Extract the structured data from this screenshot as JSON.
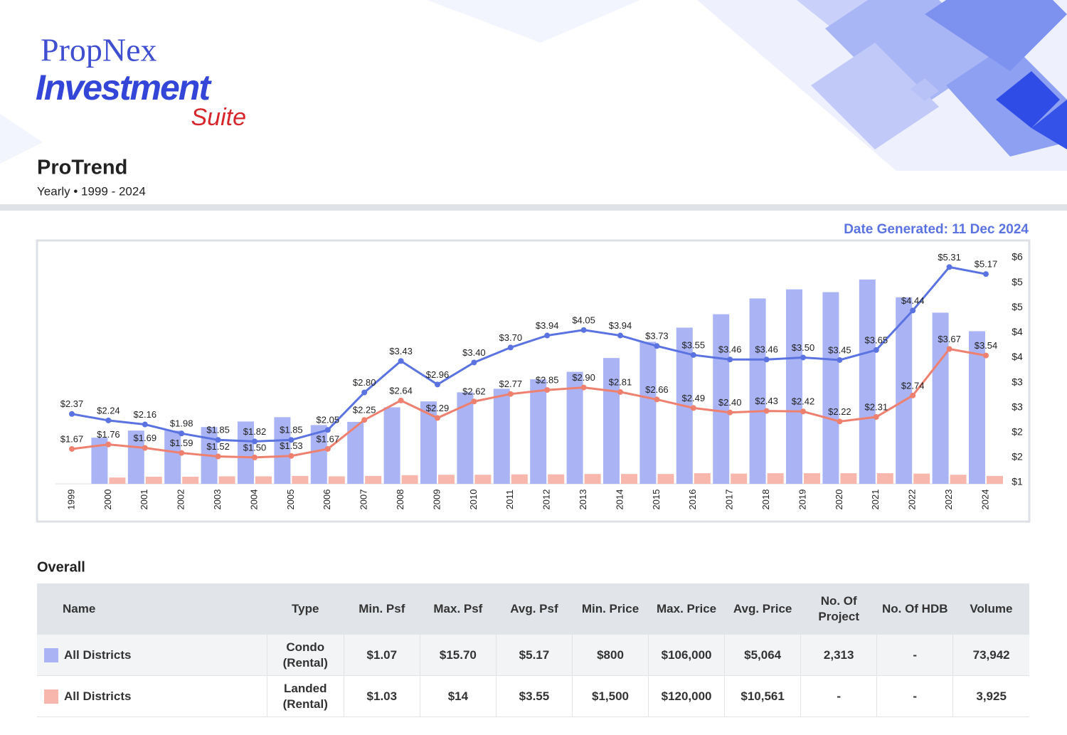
{
  "header": {
    "brand": "PropNex",
    "product": "Investment",
    "suffix": "Suite",
    "title": "ProTrend",
    "subtitle": "Yearly • 1999 - 2024",
    "date_generated": "Date Generated: 11 Dec 2024"
  },
  "chart_data": {
    "type": "combo",
    "categories": [
      "1999",
      "2000",
      "2001",
      "2002",
      "2003",
      "2004",
      "2005",
      "2006",
      "2007",
      "2008",
      "2009",
      "2010",
      "2011",
      "2012",
      "2013",
      "2014",
      "2015",
      "2016",
      "2017",
      "2018",
      "2019",
      "2020",
      "2021",
      "2022",
      "2023",
      "2024"
    ],
    "ylim": [
      1,
      5.5
    ],
    "yticks": [
      {
        "value": 1,
        "label": "$1"
      },
      {
        "value": 1.5,
        "label": "$2"
      },
      {
        "value": 2,
        "label": "$2"
      },
      {
        "value": 2.5,
        "label": "$3"
      },
      {
        "value": 3,
        "label": "$3"
      },
      {
        "value": 3.5,
        "label": "$4"
      },
      {
        "value": 4,
        "label": "$4"
      },
      {
        "value": 4.5,
        "label": "$5"
      },
      {
        "value": 5,
        "label": "$5"
      },
      {
        "value": 5.5,
        "label": "$6"
      }
    ],
    "y2lim": [
      0,
      5700
    ],
    "series": [
      {
        "type": "bar",
        "axis": "y2",
        "color": "#aab4f5",
        "values": [
          null,
          1170,
          1350,
          1350,
          1440,
          1580,
          1690,
          1490,
          1570,
          1940,
          2090,
          2320,
          2410,
          2650,
          2840,
          3190,
          3600,
          3960,
          4300,
          4700,
          4930,
          4860,
          5180,
          4730,
          4340,
          3870
        ]
      },
      {
        "type": "bar",
        "axis": "y2",
        "color": "#f8b7ac",
        "values": [
          null,
          160,
          180,
          180,
          190,
          190,
          200,
          190,
          200,
          220,
          230,
          230,
          240,
          240,
          250,
          250,
          250,
          270,
          260,
          270,
          270,
          270,
          270,
          260,
          230,
          200
        ]
      },
      {
        "type": "line",
        "color": "#5b73e0",
        "values": [
          2.37,
          2.24,
          2.16,
          1.98,
          1.85,
          1.82,
          1.85,
          2.05,
          2.8,
          3.43,
          2.96,
          3.4,
          3.7,
          3.94,
          4.05,
          3.94,
          3.73,
          3.55,
          3.46,
          3.46,
          3.5,
          3.45,
          3.65,
          4.44,
          5.31,
          5.17
        ],
        "value_labels": [
          "$2.37",
          "$2.24",
          "$2.16",
          "$1.98",
          "$1.85",
          "$1.82",
          "$1.85",
          "$2.05",
          "$2.80",
          "$3.43",
          "$2.96",
          "$3.40",
          "$3.70",
          "$3.94",
          "$4.05",
          "$3.94",
          "$3.73",
          "$3.55",
          "$3.46",
          "$3.46",
          "$3.50",
          "$3.45",
          "$3.65",
          "$4.44",
          "$5.31",
          "$5.17"
        ]
      },
      {
        "type": "line",
        "color": "#ee8070",
        "values": [
          1.67,
          1.76,
          1.69,
          1.59,
          1.52,
          1.5,
          1.53,
          1.67,
          2.25,
          2.64,
          2.29,
          2.62,
          2.77,
          2.85,
          2.9,
          2.81,
          2.66,
          2.49,
          2.4,
          2.43,
          2.42,
          2.22,
          2.31,
          2.74,
          3.67,
          3.54
        ],
        "value_labels": [
          "$1.67",
          "$1.76",
          "$1.69",
          "$1.59",
          "$1.52",
          "$1.50",
          "$1.53",
          "$1.67",
          "$2.25",
          "$2.64",
          "$2.29",
          "$2.62",
          "$2.77",
          "$2.85",
          "$2.90",
          "$2.81",
          "$2.66",
          "$2.49",
          "$2.40",
          "$2.43",
          "$2.42",
          "$2.22",
          "$2.31",
          "$2.74",
          "$3.67",
          "$3.54"
        ]
      }
    ]
  },
  "table": {
    "title": "Overall",
    "columns": [
      "Name",
      "Type",
      "Min. Psf",
      "Max. Psf",
      "Avg. Psf",
      "Min. Price",
      "Max. Price",
      "Avg. Price",
      "No. Of Project",
      "No. Of HDB",
      "Volume"
    ],
    "row_colors": [
      "#aab4f5",
      "#f8b7ac"
    ],
    "rows": [
      [
        "All Districts",
        "Condo (Rental)",
        "$1.07",
        "$15.70",
        "$5.17",
        "$800",
        "$106,000",
        "$5,064",
        "2,313",
        "-",
        "73,942"
      ],
      [
        "All Districts",
        "Landed (Rental)",
        "$1.03",
        "$14",
        "$3.55",
        "$1,500",
        "$120,000",
        "$10,561",
        "-",
        "-",
        "3,925"
      ]
    ]
  }
}
